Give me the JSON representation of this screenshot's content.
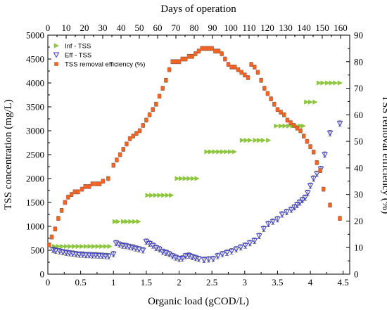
{
  "chart_data": {
    "type": "scatter",
    "title": "",
    "x_axis": {
      "label": "Organic load (gCOD/L)",
      "range": [
        0,
        4.6
      ],
      "ticks": [
        0,
        0.5,
        1,
        1.5,
        2,
        2.5,
        3,
        3.5,
        4,
        4.5
      ],
      "tick_labels": [
        "0",
        "0.5",
        "1",
        "1.5",
        "2",
        "2.5",
        "3",
        "3.5",
        "4",
        "4.5"
      ]
    },
    "top_axis": {
      "label": "Days of operation",
      "range": [
        0,
        165
      ],
      "ticks": [
        0,
        10,
        20,
        30,
        40,
        50,
        60,
        70,
        80,
        90,
        100,
        110,
        120,
        130,
        140,
        150,
        160
      ],
      "tick_labels": [
        "0",
        "10",
        "20",
        "30",
        "40",
        "50",
        "60",
        "70",
        "80",
        "90",
        "100",
        "110",
        "120",
        "130",
        "140",
        "150",
        "160"
      ]
    },
    "y_axis_left": {
      "label": "TSS concentration (mg/L)",
      "range": [
        0,
        5000
      ],
      "ticks": [
        0,
        500,
        1000,
        1500,
        2000,
        2500,
        3000,
        3500,
        4000,
        4500,
        5000
      ],
      "tick_labels": [
        "0",
        "500",
        "1000",
        "1500",
        "2000",
        "2500",
        "3000",
        "3500",
        "4000",
        "4500",
        "5000"
      ]
    },
    "y_axis_right": {
      "label": "TSS removal efficiency (%)",
      "range": [
        0,
        90
      ],
      "ticks": [
        0,
        10,
        20,
        30,
        40,
        50,
        60,
        70,
        80,
        90
      ],
      "tick_labels": [
        "0",
        "10",
        "20",
        "30",
        "40",
        "50",
        "60",
        "70",
        "80",
        "90"
      ]
    },
    "legend": {
      "position": "top-left",
      "entries": [
        {
          "name": "Inf - TSS",
          "color": "#8dc63f",
          "marker": "triangle-right"
        },
        {
          "name": "Eff - TSS",
          "color": "#3b3bd6",
          "marker": "triangle-down-open"
        },
        {
          "name": "TSS removal efficiency (%)",
          "color": "#f26522",
          "marker": "square"
        }
      ]
    },
    "series": [
      {
        "name": "Inf - TSS",
        "axis": "left",
        "color": "#8dc63f",
        "marker": "triangle-right",
        "x": [
          0.1,
          0.16,
          0.22,
          0.28,
          0.34,
          0.4,
          0.46,
          0.52,
          0.58,
          0.64,
          0.7,
          0.76,
          0.82,
          0.88,
          0.94,
          1.02,
          1.07,
          1.15,
          1.2,
          1.26,
          1.32,
          1.38,
          1.52,
          1.58,
          1.64,
          1.7,
          1.76,
          1.82,
          1.88,
          1.97,
          2.03,
          2.09,
          2.15,
          2.21,
          2.27,
          2.42,
          2.48,
          2.54,
          2.6,
          2.66,
          2.72,
          2.78,
          2.84,
          2.96,
          3.02,
          3.08,
          3.16,
          3.22,
          3.28,
          3.36,
          3.48,
          3.55,
          3.61,
          3.67,
          3.73,
          3.79,
          3.85,
          3.89,
          3.94,
          4.0,
          4.07,
          4.13,
          4.19,
          4.26,
          4.32,
          4.38,
          4.45
        ],
        "y": [
          580,
          580,
          580,
          580,
          580,
          580,
          580,
          580,
          580,
          580,
          580,
          580,
          580,
          580,
          580,
          1100,
          1100,
          1100,
          1100,
          1100,
          1100,
          1100,
          1650,
          1650,
          1650,
          1650,
          1650,
          1650,
          1650,
          2000,
          2000,
          2000,
          2000,
          2000,
          2000,
          2560,
          2560,
          2560,
          2560,
          2560,
          2560,
          2560,
          2560,
          2800,
          2800,
          2800,
          2800,
          2800,
          2800,
          2800,
          3100,
          3100,
          3100,
          3100,
          3100,
          3100,
          3100,
          3100,
          3600,
          3600,
          3600,
          4000,
          4000,
          4000,
          4000,
          4000,
          4000
        ]
      },
      {
        "name": "Eff - TSS",
        "axis": "left",
        "color": "#3b3bd6",
        "marker": "triangle-down-open",
        "x": [
          0.08,
          0.12,
          0.18,
          0.23,
          0.28,
          0.33,
          0.38,
          0.43,
          0.48,
          0.53,
          0.58,
          0.63,
          0.68,
          0.73,
          0.78,
          0.83,
          0.88,
          0.93,
          1.0,
          1.04,
          1.09,
          1.14,
          1.19,
          1.24,
          1.29,
          1.34,
          1.39,
          1.45,
          1.5,
          1.55,
          1.6,
          1.65,
          1.7,
          1.75,
          1.8,
          1.85,
          1.9,
          1.95,
          2.0,
          2.05,
          2.1,
          2.15,
          2.2,
          2.25,
          2.3,
          2.38,
          2.45,
          2.52,
          2.59,
          2.66,
          2.73,
          2.8,
          2.87,
          2.94,
          3.01,
          3.08,
          3.15,
          3.22,
          3.29,
          3.36,
          3.43,
          3.5,
          3.57,
          3.64,
          3.71,
          3.76,
          3.8,
          3.84,
          3.88,
          3.92,
          3.96,
          4.0,
          4.05,
          4.1,
          4.16,
          4.22,
          4.3,
          4.45
        ],
        "y": [
          510,
          490,
          480,
          460,
          450,
          440,
          430,
          420,
          410,
          410,
          400,
          400,
          395,
          395,
          390,
          385,
          380,
          375,
          420,
          650,
          620,
          600,
          590,
          570,
          560,
          540,
          520,
          500,
          680,
          640,
          600,
          550,
          520,
          470,
          450,
          420,
          380,
          350,
          320,
          330,
          380,
          390,
          360,
          340,
          320,
          300,
          310,
          320,
          380,
          420,
          450,
          480,
          520,
          560,
          600,
          650,
          700,
          800,
          950,
          1050,
          1100,
          1150,
          1250,
          1300,
          1350,
          1400,
          1450,
          1500,
          1550,
          1600,
          1700,
          1850,
          2000,
          2100,
          2200,
          2500,
          2950,
          3150
        ]
      },
      {
        "name": "TSS removal efficiency (%)",
        "axis": "right",
        "color": "#f26522",
        "marker": "square",
        "x": [
          0.02,
          0.06,
          0.11,
          0.16,
          0.21,
          0.26,
          0.31,
          0.36,
          0.41,
          0.46,
          0.52,
          0.57,
          0.63,
          0.68,
          0.74,
          0.79,
          0.84,
          0.92,
          1.0,
          1.05,
          1.1,
          1.15,
          1.2,
          1.25,
          1.3,
          1.35,
          1.4,
          1.45,
          1.5,
          1.55,
          1.6,
          1.65,
          1.7,
          1.75,
          1.8,
          1.85,
          1.9,
          1.95,
          2.0,
          2.05,
          2.1,
          2.15,
          2.2,
          2.25,
          2.3,
          2.35,
          2.4,
          2.45,
          2.5,
          2.55,
          2.6,
          2.65,
          2.7,
          2.75,
          2.8,
          2.85,
          2.9,
          2.95,
          3.0,
          3.05,
          3.1,
          3.15,
          3.2,
          3.25,
          3.3,
          3.35,
          3.4,
          3.45,
          3.5,
          3.55,
          3.6,
          3.65,
          3.7,
          3.75,
          3.8,
          3.85,
          3.9,
          3.95,
          4.0,
          4.05,
          4.1,
          4.15,
          4.2,
          4.3,
          4.45
        ],
        "y": [
          11,
          14,
          17,
          21,
          24,
          27,
          29,
          30,
          31,
          31,
          32,
          33,
          33,
          34,
          34,
          34,
          35,
          36,
          41,
          43,
          45,
          47,
          49,
          51,
          52,
          53,
          54,
          56,
          58,
          60,
          62,
          64,
          67,
          70,
          73,
          77,
          80,
          80,
          80,
          81,
          81,
          82,
          82,
          83,
          84,
          85,
          85,
          85,
          85,
          84,
          84,
          83,
          81,
          79,
          78,
          78,
          77,
          76,
          75,
          74,
          79,
          78,
          76,
          73,
          70,
          68,
          66,
          64,
          62,
          61,
          60,
          58,
          57,
          56,
          55,
          54,
          52,
          50,
          48,
          46,
          42,
          39,
          32,
          26,
          21
        ]
      }
    ]
  }
}
